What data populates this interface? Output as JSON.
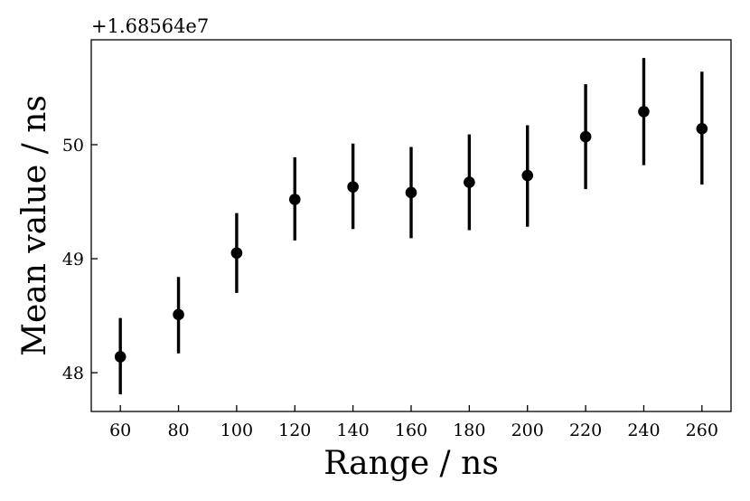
{
  "chart_data": {
    "type": "scatter",
    "title": "",
    "xlabel": "Range / ns",
    "ylabel": "Mean value / ns",
    "y_offset_label": "+1.68564e7",
    "xlim": [
      50,
      270
    ],
    "ylim": [
      47.66,
      50.92
    ],
    "x_ticks": [
      60,
      80,
      100,
      120,
      140,
      160,
      180,
      200,
      220,
      240,
      260
    ],
    "y_ticks": [
      48,
      49,
      50
    ],
    "x_tick_labels": [
      "60",
      "80",
      "100",
      "120",
      "140",
      "160",
      "180",
      "200",
      "220",
      "240",
      "260"
    ],
    "y_tick_labels": [
      "48",
      "49",
      "50"
    ],
    "grid": false,
    "marker_color": "#000000",
    "series": [
      {
        "x": [
          60,
          80,
          100,
          120,
          140,
          160,
          180,
          200,
          220,
          240,
          260
        ],
        "y": [
          48.14,
          48.51,
          49.05,
          49.52,
          49.63,
          49.58,
          49.67,
          49.73,
          50.07,
          50.29,
          50.14
        ],
        "err_low": [
          47.81,
          48.17,
          48.7,
          49.16,
          49.26,
          49.18,
          49.25,
          49.28,
          49.61,
          49.82,
          49.65
        ],
        "err_high": [
          48.48,
          48.84,
          49.4,
          49.89,
          50.01,
          49.98,
          50.09,
          50.17,
          50.53,
          50.76,
          50.64
        ]
      }
    ]
  }
}
